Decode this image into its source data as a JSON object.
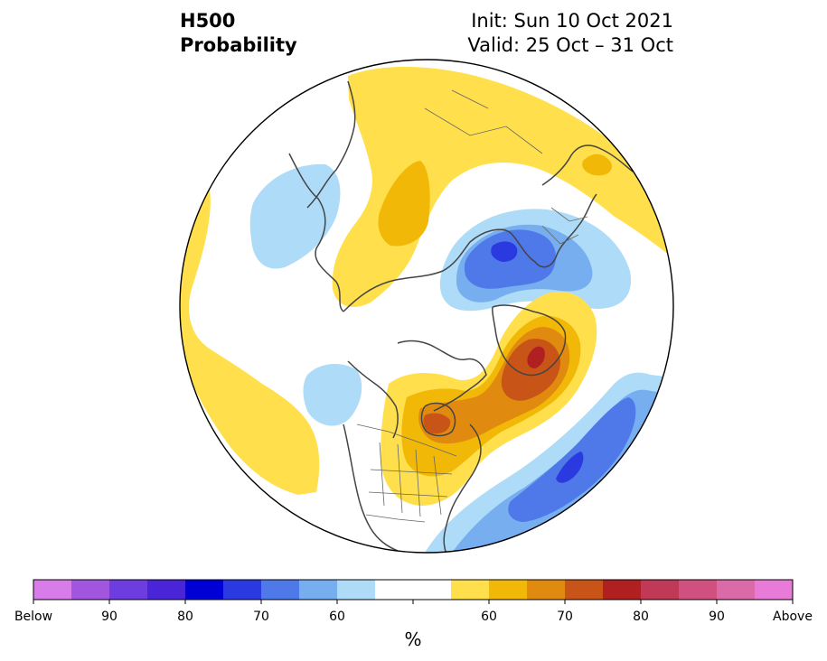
{
  "header": {
    "variable": "H500",
    "product": "Probability",
    "init": "Init: Sun 10 Oct 2021",
    "valid": "Valid: 25 Oct – 31 Oct"
  },
  "colorbar": {
    "colors": [
      "#d77ce8",
      "#a256e0",
      "#6e3de0",
      "#4a25d8",
      "#0000d6",
      "#2a3ae0",
      "#4f78e8",
      "#76aef0",
      "#aedcf8",
      "#ffffff",
      "#ffffff",
      "#ffe04c",
      "#f2b807",
      "#e08a10",
      "#c85418",
      "#b02020",
      "#c03a58",
      "#d05080",
      "#db6aa8",
      "#e87ad8"
    ],
    "ticks": [
      "Below",
      "90",
      "80",
      "70",
      "60",
      "60",
      "70",
      "80",
      "90",
      "Above"
    ],
    "unit": "%"
  },
  "palette": {
    "yellow": "#ffe04c",
    "gold": "#f2b807",
    "orange": "#e08a10",
    "dark_orange": "#c85418",
    "red": "#b02020",
    "light_blue": "#aedcf8",
    "mid_blue": "#76aef0",
    "blue": "#4f78e8",
    "deep_blue": "#2a3ae0",
    "coast": "#444444"
  }
}
